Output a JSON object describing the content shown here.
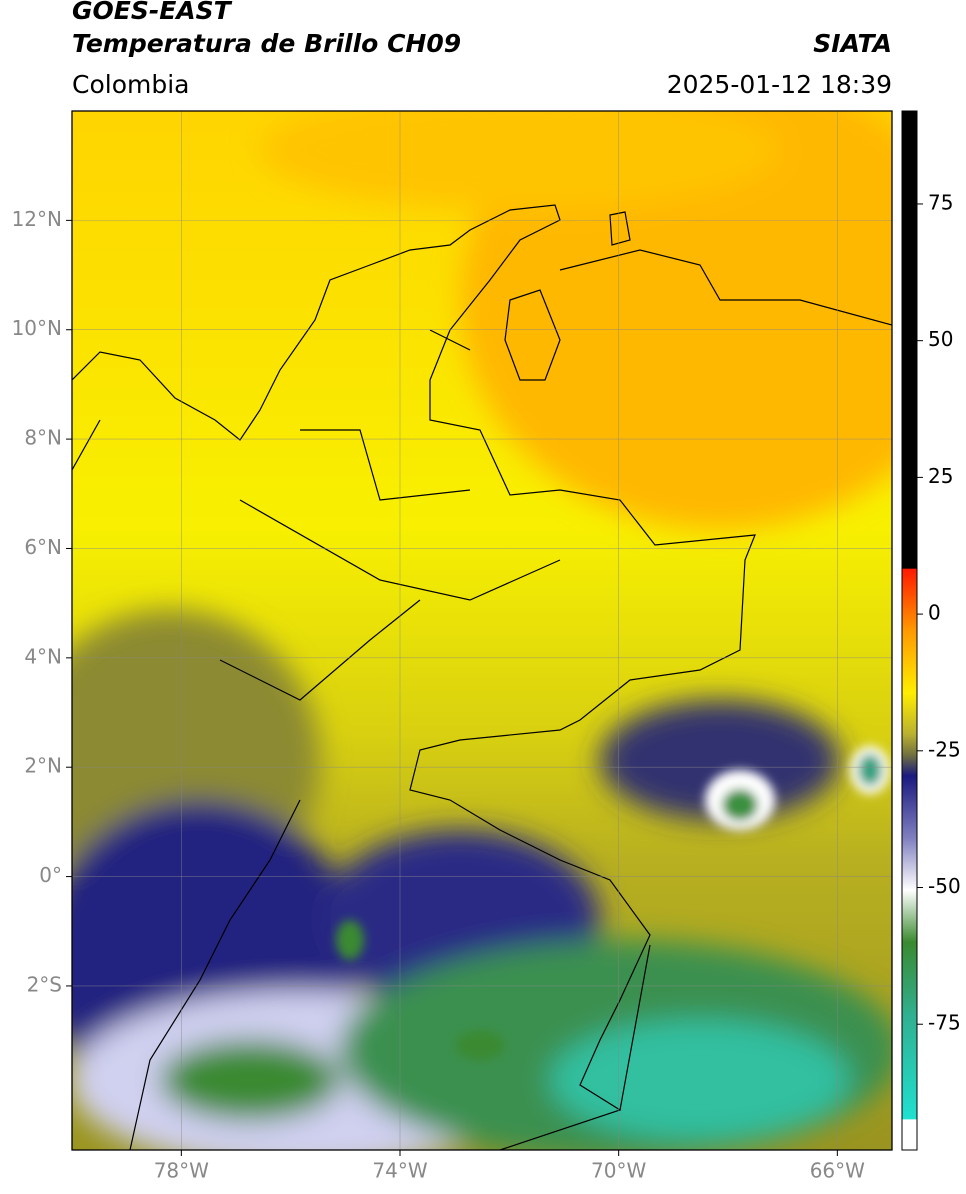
{
  "chart_data": {
    "type": "map",
    "title": "GOES-EAST",
    "subtitle": "Temperatura de Brillo CH09",
    "source": "SIATA",
    "region": "Colombia",
    "datetime": "2025-01-12 18:39",
    "xlim": [
      -80,
      -65
    ],
    "ylim": [
      -5,
      14
    ],
    "xticks": [
      {
        "value": -78,
        "label": "78°W"
      },
      {
        "value": -74,
        "label": "74°W"
      },
      {
        "value": -70,
        "label": "70°W"
      },
      {
        "value": -66,
        "label": "66°W"
      }
    ],
    "yticks": [
      {
        "value": 12,
        "label": "12°N"
      },
      {
        "value": 10,
        "label": "10°N"
      },
      {
        "value": 8,
        "label": "8°N"
      },
      {
        "value": 6,
        "label": "6°N"
      },
      {
        "value": 4,
        "label": "4°N"
      },
      {
        "value": 2,
        "label": "2°N"
      },
      {
        "value": 0,
        "label": "0°"
      },
      {
        "value": -2,
        "label": "2°S"
      }
    ],
    "grid": true,
    "colorbar": {
      "lim": [
        -98,
        92
      ],
      "ticks": [
        75,
        50,
        25,
        0,
        -25,
        -50,
        -75
      ]
    }
  }
}
